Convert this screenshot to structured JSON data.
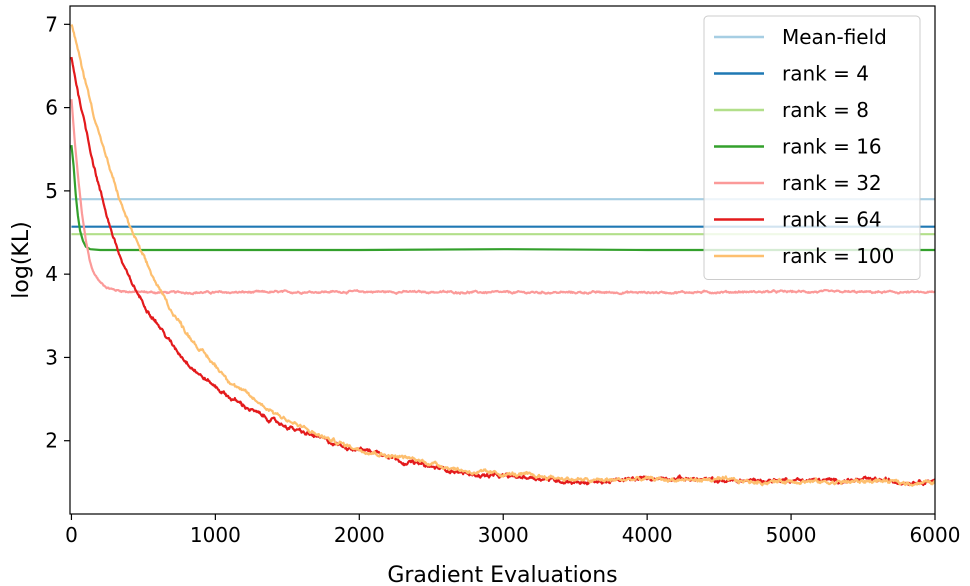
{
  "chart_data": {
    "type": "line",
    "xlabel": "Gradient Evaluations",
    "ylabel": "log(KL)",
    "xlim": [
      -10,
      6000
    ],
    "ylim": [
      1.12,
      7.22
    ],
    "xticks": [
      0,
      1000,
      2000,
      3000,
      4000,
      5000,
      6000
    ],
    "yticks": [
      2,
      3,
      4,
      5,
      6,
      7
    ],
    "grid": false,
    "legend_position": "top-right",
    "series": [
      {
        "name": "Mean-field",
        "color": "#a6cee3",
        "x": [
          0,
          6000
        ],
        "y": [
          4.9,
          4.9
        ]
      },
      {
        "name": "rank = 4",
        "color": "#1f78b4",
        "x": [
          0,
          6000
        ],
        "y": [
          4.57,
          4.57
        ]
      },
      {
        "name": "rank = 8",
        "color": "#b2df8a",
        "x": [
          0,
          6000
        ],
        "y": [
          4.48,
          4.48
        ]
      },
      {
        "name": "rank = 16",
        "color": "#33a02c",
        "x": [
          0,
          15,
          30,
          45,
          60,
          80,
          100,
          130,
          200,
          400,
          1000,
          2000,
          3000,
          4000,
          5000,
          6000
        ],
        "y": [
          5.55,
          5.3,
          4.95,
          4.7,
          4.52,
          4.4,
          4.33,
          4.3,
          4.29,
          4.29,
          4.29,
          4.29,
          4.3,
          4.29,
          4.29,
          4.29
        ]
      },
      {
        "name": "rank = 32",
        "color": "#fb9a99",
        "x": [
          0,
          25,
          50,
          75,
          100,
          125,
          150,
          200,
          250,
          300,
          400,
          600,
          1000,
          2000,
          3000,
          4000,
          5000,
          6000
        ],
        "y": [
          6.1,
          5.55,
          5.1,
          4.7,
          4.4,
          4.18,
          4.03,
          3.9,
          3.84,
          3.81,
          3.79,
          3.78,
          3.78,
          3.79,
          3.78,
          3.78,
          3.79,
          3.78
        ],
        "noise": 0.012
      },
      {
        "name": "rank = 64",
        "color": "#e31a1c",
        "x": [
          0,
          50,
          100,
          150,
          200,
          250,
          300,
          350,
          400,
          500,
          600,
          700,
          800,
          900,
          1000,
          1100,
          1200,
          1300,
          1400,
          1500,
          1600,
          1700,
          1800,
          1900,
          2000,
          2100,
          2200,
          2300,
          2400,
          2500,
          2600,
          2700,
          2800,
          3000,
          3200,
          3400,
          3600,
          3800,
          4000,
          4200,
          4500,
          4800,
          5000,
          5300,
          5600,
          5800,
          6000
        ],
        "y": [
          6.6,
          6.15,
          5.75,
          5.35,
          5.0,
          4.68,
          4.4,
          4.15,
          3.95,
          3.65,
          3.4,
          3.15,
          2.95,
          2.78,
          2.65,
          2.52,
          2.42,
          2.32,
          2.24,
          2.17,
          2.1,
          2.05,
          1.98,
          1.93,
          1.9,
          1.87,
          1.83,
          1.75,
          1.73,
          1.68,
          1.66,
          1.62,
          1.59,
          1.57,
          1.56,
          1.52,
          1.5,
          1.52,
          1.55,
          1.55,
          1.52,
          1.52,
          1.53,
          1.52,
          1.53,
          1.5,
          1.53
        ],
        "noise": 0.025
      },
      {
        "name": "rank = 100",
        "color": "#fdbf6f",
        "x": [
          0,
          50,
          100,
          150,
          200,
          250,
          300,
          350,
          400,
          500,
          600,
          700,
          800,
          900,
          1000,
          1100,
          1200,
          1300,
          1400,
          1500,
          1600,
          1700,
          1800,
          1900,
          2000,
          2100,
          2200,
          2300,
          2400,
          2500,
          2600,
          2700,
          2800,
          3000,
          3200,
          3400,
          3600,
          3800,
          4000,
          4200,
          4500,
          4800,
          5000,
          5300,
          5600,
          5800,
          6000
        ],
        "y": [
          7.0,
          6.65,
          6.3,
          5.95,
          5.65,
          5.35,
          5.08,
          4.82,
          4.6,
          4.2,
          3.85,
          3.55,
          3.3,
          3.08,
          2.9,
          2.72,
          2.58,
          2.46,
          2.35,
          2.25,
          2.16,
          2.08,
          2.01,
          1.95,
          1.9,
          1.86,
          1.82,
          1.8,
          1.77,
          1.73,
          1.69,
          1.65,
          1.62,
          1.6,
          1.58,
          1.55,
          1.52,
          1.53,
          1.54,
          1.53,
          1.53,
          1.5,
          1.52,
          1.5,
          1.52,
          1.49,
          1.5
        ],
        "noise": 0.025
      }
    ]
  }
}
